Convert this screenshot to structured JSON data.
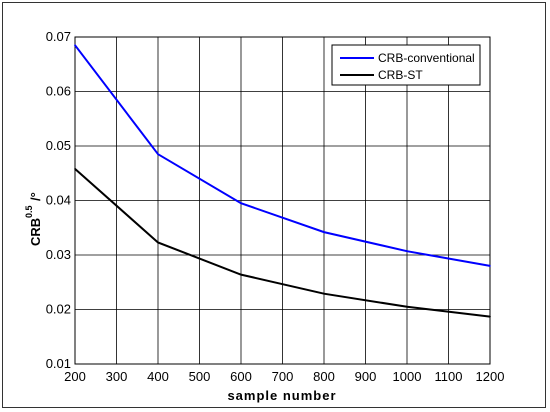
{
  "chart_data": {
    "type": "line",
    "title": "",
    "xlabel": "sample number",
    "ylabel": {
      "base": "CRB",
      "exponent": "0.5",
      "unit": "/°"
    },
    "x": [
      200,
      400,
      600,
      800,
      1000,
      1200
    ],
    "xlim": [
      200,
      1200
    ],
    "ylim": [
      0.01,
      0.07
    ],
    "xticks": [
      "200",
      "300",
      "400",
      "500",
      "600",
      "700",
      "800",
      "900",
      "1000",
      "1100",
      "1200"
    ],
    "yticks": [
      "0.01",
      "0.02",
      "0.03",
      "0.04",
      "0.05",
      "0.06",
      "0.07"
    ],
    "grid": true,
    "legend_position": "top-right",
    "series": [
      {
        "name": "CRB-conventional",
        "color": "#0000ff",
        "values": [
          0.0685,
          0.0485,
          0.0395,
          0.0342,
          0.0307,
          0.028
        ]
      },
      {
        "name": "CRB-ST",
        "color": "#000000",
        "values": [
          0.0458,
          0.0323,
          0.0264,
          0.0229,
          0.0205,
          0.0187
        ]
      }
    ]
  }
}
